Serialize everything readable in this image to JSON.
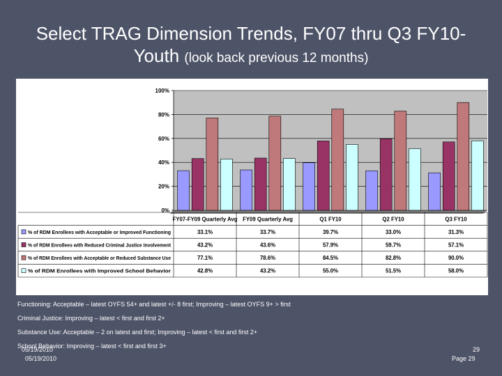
{
  "slide": {
    "title_line1": "Select TRAG Dimension Trends, FY07 thru Q3 FY10-",
    "title_line2_main": "Youth",
    "title_line2_sub": "(look back previous 12 months)",
    "notes": [
      "Functioning:  Acceptable – latest OYFS 54+ and latest +/- 8 first; Improving – latest OYFS 9+ > first",
      "Criminal Justice:  Improving – latest < first and first 2+",
      "Substance Use:  Acceptable – 2 on latest and first; Improving – latest < first and first 2+",
      "School Behavior:  Improving – latest < first and first 3+"
    ],
    "date_1": "05/19/2010",
    "date_2": "05/19/2010",
    "page_number": "29",
    "page_label": "Page 29"
  },
  "chart_data": {
    "type": "bar",
    "ylim": [
      0,
      100
    ],
    "yticks": [
      "0%",
      "20%",
      "40%",
      "60%",
      "80%",
      "100%"
    ],
    "grid": true,
    "categories": [
      "FY07-FY09 Quarterly Avg",
      "FY09 Quarterly Avg",
      "Q1 FY10",
      "Q2 FY10",
      "Q3 FY10"
    ],
    "series": [
      {
        "name": "% of RDM Enrollees with Acceptable or Improved Functioning",
        "color": "#9999ff",
        "values": [
          33.1,
          33.7,
          39.7,
          33.0,
          31.3
        ],
        "labels": [
          "33.1%",
          "33.7%",
          "39.7%",
          "33.0%",
          "31.3%"
        ]
      },
      {
        "name": "% of RDM Enrollees with Reduced Criminal Justice Involvement",
        "color": "#993366",
        "values": [
          43.2,
          43.6,
          57.9,
          59.7,
          57.1
        ],
        "labels": [
          "43.2%",
          "43.6%",
          "57.9%",
          "59.7%",
          "57.1%"
        ]
      },
      {
        "name": "% of RDM Enrollees with Acceptable or Reduced Substance Use",
        "color": "#c0797a",
        "values": [
          77.1,
          78.6,
          84.5,
          82.8,
          90.0
        ],
        "labels": [
          "77.1%",
          "78.6%",
          "84.5%",
          "82.8%",
          "90.0%"
        ]
      },
      {
        "name": "% of RDM Enrollees with Improved School Behavior",
        "color": "#ccffff",
        "values": [
          42.8,
          43.2,
          55.0,
          51.5,
          58.0
        ],
        "labels": [
          "42.8%",
          "43.2%",
          "55.0%",
          "51.5%",
          "58.0%"
        ]
      }
    ]
  }
}
